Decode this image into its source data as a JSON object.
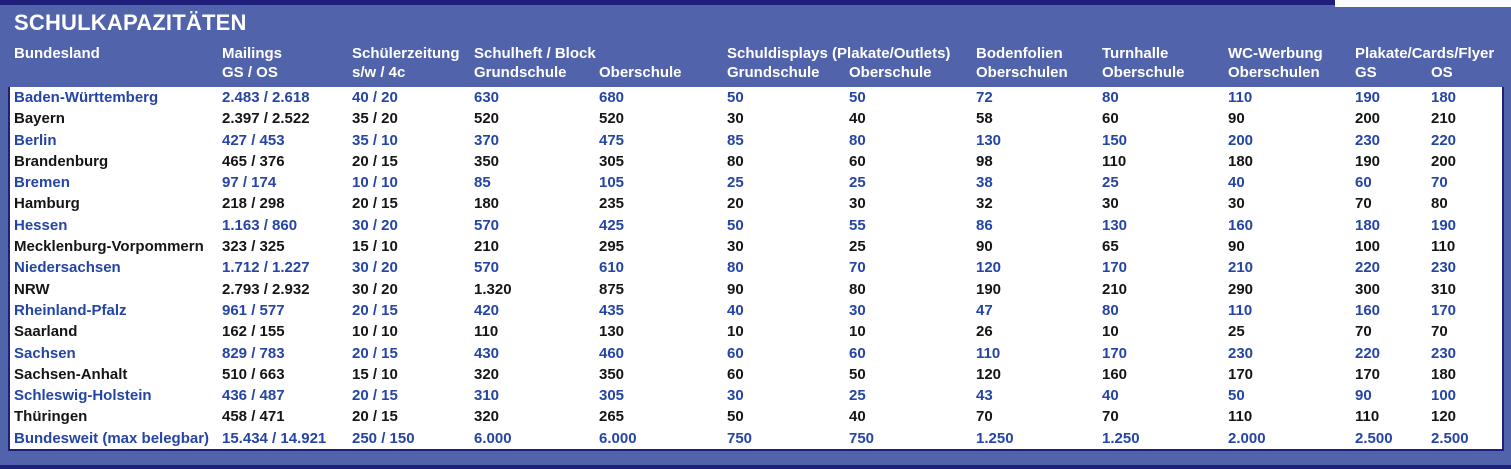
{
  "title": "SCHULKAPAZITÄTEN",
  "colors": {
    "frame_blue": "#5163aa",
    "navy_line": "#1e1f7b",
    "header_text": "#ffffff",
    "row_text_blue": "#2445a5",
    "row_text_black": "#151515",
    "table_background": "#ffffff"
  },
  "header": {
    "bundesland": "Bundesland",
    "mailings": "Mailings",
    "mailings_sub": "GS / OS",
    "schuelerzeitung": "Schülerzeitung",
    "schuelerzeitung_sub": "s/w / 4c",
    "schulheft": "Schulheft / Block",
    "schulheft_sub_gs": "Grundschule",
    "schulheft_sub_os": "Oberschule",
    "schuldisplays": "Schuldisplays (Plakate/Outlets)",
    "schuldisplays_sub_gs": "Grundschule",
    "schuldisplays_sub_os": "Oberschule",
    "bodenfolien": "Bodenfolien",
    "bodenfolien_sub": "Oberschulen",
    "turnhalle": "Turnhalle",
    "turnhalle_sub": "Oberschule",
    "wc_werbung": "WC-Werbung",
    "wc_werbung_sub": "Oberschulen",
    "plakate": "Plakate/Cards/Flyer",
    "plakate_sub_gs": "GS",
    "plakate_sub_os": "OS"
  },
  "rows": [
    {
      "name": "Baden-Württemberg",
      "style": "blue",
      "values": [
        "2.483 / 2.618",
        "40 / 20",
        "630",
        "680",
        "50",
        "50",
        "72",
        "80",
        "110",
        "190",
        "180"
      ]
    },
    {
      "name": "Bayern",
      "style": "black",
      "values": [
        "2.397 / 2.522",
        "35 / 20",
        "520",
        "520",
        "30",
        "40",
        "58",
        "60",
        "90",
        "200",
        "210"
      ]
    },
    {
      "name": "Berlin",
      "style": "blue",
      "values": [
        "427 / 453",
        "35 / 10",
        "370",
        "475",
        "85",
        "80",
        "130",
        "150",
        "200",
        "230",
        "220"
      ]
    },
    {
      "name": "Brandenburg",
      "style": "black",
      "values": [
        "465 / 376",
        "20 / 15",
        "350",
        "305",
        "80",
        "60",
        "98",
        "110",
        "180",
        "190",
        "200"
      ]
    },
    {
      "name": "Bremen",
      "style": "blue",
      "values": [
        "97 / 174",
        "10 / 10",
        "85",
        "105",
        "25",
        "25",
        "38",
        "25",
        "40",
        "60",
        "70"
      ]
    },
    {
      "name": "Hamburg",
      "style": "black",
      "values": [
        "218 / 298",
        "20 / 15",
        "180",
        "235",
        "20",
        "30",
        "32",
        "30",
        "30",
        "70",
        "80"
      ]
    },
    {
      "name": "Hessen",
      "style": "blue",
      "values": [
        "1.163 / 860",
        "30 / 20",
        "570",
        "425",
        "50",
        "55",
        "86",
        "130",
        "160",
        "180",
        "190"
      ]
    },
    {
      "name": "Mecklenburg-Vorpommern",
      "style": "black",
      "values": [
        "323 / 325",
        "15 / 10",
        "210",
        "295",
        "30",
        "25",
        "90",
        "65",
        "90",
        "100",
        "110"
      ]
    },
    {
      "name": "Niedersachsen",
      "style": "blue",
      "values": [
        "1.712 / 1.227",
        "30 / 20",
        "570",
        "610",
        "80",
        "70",
        "120",
        "170",
        "210",
        "220",
        "230"
      ]
    },
    {
      "name": "NRW",
      "style": "black",
      "values": [
        "2.793 / 2.932",
        "30 / 20",
        "1.320",
        "875",
        "90",
        "80",
        "190",
        "210",
        "290",
        "300",
        "310"
      ]
    },
    {
      "name": "Rheinland-Pfalz",
      "style": "blue",
      "values": [
        "961 / 577",
        "20 / 15",
        "420",
        "435",
        "40",
        "30",
        "47",
        "80",
        "110",
        "160",
        "170"
      ]
    },
    {
      "name": "Saarland",
      "style": "black",
      "values": [
        "162 / 155",
        "10 / 10",
        "110",
        "130",
        "10",
        "10",
        "26",
        "10",
        "25",
        "70",
        "70"
      ]
    },
    {
      "name": "Sachsen",
      "style": "blue",
      "values": [
        "829 / 783",
        "20 / 15",
        "430",
        "460",
        "60",
        "60",
        "110",
        "170",
        "230",
        "220",
        "230"
      ]
    },
    {
      "name": "Sachsen-Anhalt",
      "style": "black",
      "values": [
        "510 / 663",
        "15 / 10",
        "320",
        "350",
        "60",
        "50",
        "120",
        "160",
        "170",
        "170",
        "180"
      ]
    },
    {
      "name": "Schleswig-Holstein",
      "style": "blue",
      "values": [
        "436 / 487",
        "20 / 15",
        "310",
        "305",
        "30",
        "25",
        "43",
        "40",
        "50",
        "90",
        "100"
      ]
    },
    {
      "name": "Thüringen",
      "style": "black",
      "values": [
        "458 / 471",
        "20 / 15",
        "320",
        "265",
        "50",
        "40",
        "70",
        "70",
        "110",
        "110",
        "120"
      ]
    },
    {
      "name": "Bundesweit (max belegbar)",
      "style": "blue",
      "values": [
        "15.434 / 14.921",
        "250 / 150",
        "6.000",
        "6.000",
        "750",
        "750",
        "1.250",
        "1.250",
        "2.000",
        "2.500",
        "2.500"
      ]
    }
  ]
}
